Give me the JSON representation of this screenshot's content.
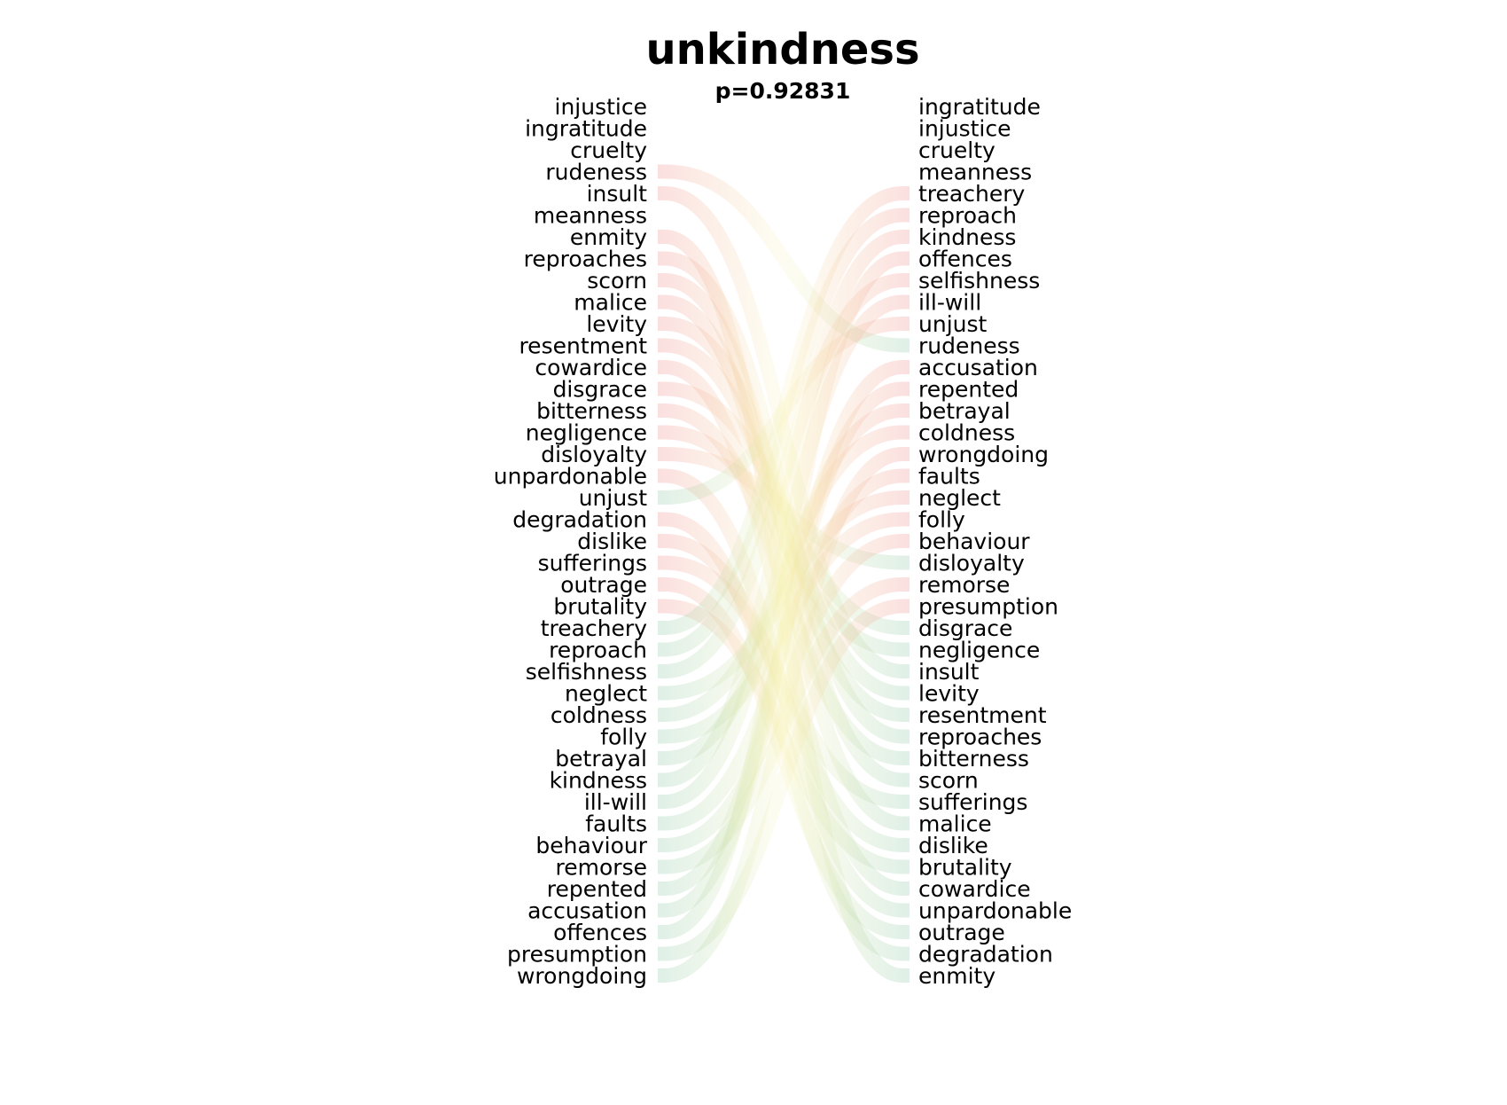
{
  "header": {
    "title": "unkindness",
    "subtitle": "p=0.92831"
  },
  "chart_data": {
    "type": "bump",
    "left_ranking": [
      "injustice",
      "ingratitude",
      "cruelty",
      "rudeness",
      "insult",
      "meanness",
      "enmity",
      "reproaches",
      "scorn",
      "malice",
      "levity",
      "resentment",
      "cowardice",
      "disgrace",
      "bitterness",
      "negligence",
      "disloyalty",
      "unpardonable",
      "unjust",
      "degradation",
      "dislike",
      "sufferings",
      "outrage",
      "brutality",
      "treachery",
      "reproach",
      "selfishness",
      "neglect",
      "coldness",
      "folly",
      "betrayal",
      "kindness",
      "ill-will",
      "faults",
      "behaviour",
      "remorse",
      "repented",
      "accusation",
      "offences",
      "presumption",
      "wrongdoing"
    ],
    "right_ranking": [
      "ingratitude",
      "injustice",
      "cruelty",
      "meanness",
      "treachery",
      "reproach",
      "kindness",
      "offences",
      "selfishness",
      "ill-will",
      "unjust",
      "rudeness",
      "accusation",
      "repented",
      "betrayal",
      "coldness",
      "wrongdoing",
      "faults",
      "neglect",
      "folly",
      "behaviour",
      "disloyalty",
      "remorse",
      "presumption",
      "disgrace",
      "negligence",
      "insult",
      "levity",
      "resentment",
      "reproaches",
      "bitterness",
      "scorn",
      "sufferings",
      "malice",
      "dislike",
      "brutality",
      "cowardice",
      "unpardonable",
      "outrage",
      "degradation",
      "enmity"
    ],
    "colors": {
      "rank_drop": "#f08c8c",
      "rank_rise": "#8cc8a8",
      "middle": "#f5eea0"
    }
  }
}
